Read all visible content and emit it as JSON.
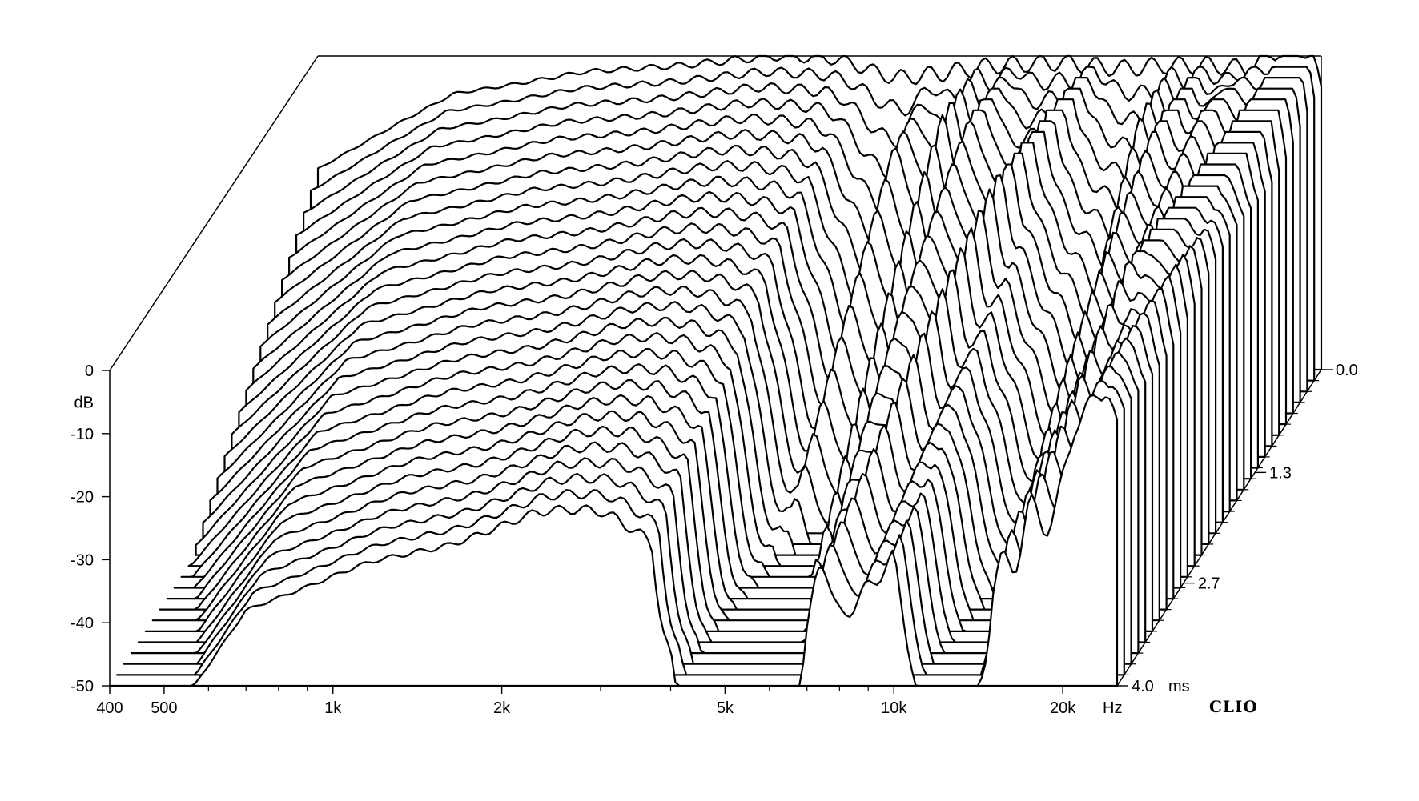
{
  "chart_data": {
    "type": "cumulative-spectral-decay-waterfall",
    "x_axis": {
      "scale": "log",
      "range": [
        400,
        25000
      ],
      "tick_labels": [
        {
          "value": 400,
          "label": "400"
        },
        {
          "value": 500,
          "label": "500"
        },
        {
          "value": 1000,
          "label": "1k"
        },
        {
          "value": 2000,
          "label": "2k"
        },
        {
          "value": 5000,
          "label": "5k"
        },
        {
          "value": 10000,
          "label": "10k"
        },
        {
          "value": 20000,
          "label": "20k"
        }
      ],
      "unit_label": "Hz"
    },
    "y_axis": {
      "range": [
        -50,
        0
      ],
      "tick_labels": [
        {
          "value": 0,
          "label": "0"
        },
        {
          "value": -10,
          "label": "-10"
        },
        {
          "value": -20,
          "label": "-20"
        },
        {
          "value": -30,
          "label": "-30"
        },
        {
          "value": -40,
          "label": "-40"
        },
        {
          "value": -50,
          "label": "-50"
        }
      ],
      "unit_label": "dB"
    },
    "z_axis": {
      "range": [
        0,
        4.0
      ],
      "tick_labels": [
        {
          "value": 0.0,
          "label": "0.0"
        },
        {
          "value": 1.3,
          "label": "1.3"
        },
        {
          "value": 2.7,
          "label": "2.7"
        },
        {
          "value": 4.0,
          "label": "4.0"
        }
      ],
      "unit_label": "ms"
    },
    "slice_count": 30,
    "slice_times_ms": [
      0.0,
      0.138,
      0.276,
      0.414,
      0.552,
      0.69,
      0.828,
      0.966,
      1.103,
      1.241,
      1.379,
      1.517,
      1.655,
      1.793,
      1.931,
      2.069,
      2.207,
      2.345,
      2.483,
      2.621,
      2.759,
      2.897,
      3.034,
      3.172,
      3.31,
      3.448,
      3.586,
      3.724,
      3.862,
      4.0
    ],
    "model": {
      "first_slice_db": [
        [
          400,
          -18
        ],
        [
          550,
          -11
        ],
        [
          700,
          -6
        ],
        [
          900,
          -4.5
        ],
        [
          1200,
          -2.5
        ],
        [
          1800,
          -1.5
        ],
        [
          2600,
          0
        ],
        [
          3400,
          -0.5
        ],
        [
          4300,
          -3.5
        ],
        [
          5000,
          -3
        ],
        [
          6500,
          -1.5
        ],
        [
          8500,
          -1
        ],
        [
          11000,
          -2
        ],
        [
          13000,
          -1.5
        ],
        [
          16000,
          -1.5
        ],
        [
          18500,
          -2
        ],
        [
          21000,
          1
        ],
        [
          24000,
          1
        ],
        [
          25000,
          -6
        ]
      ],
      "decay_db_per_ms": [
        [
          400,
          13
        ],
        [
          700,
          8
        ],
        [
          1100,
          7
        ],
        [
          1600,
          6.5
        ],
        [
          2300,
          5.5
        ],
        [
          3000,
          5.5
        ],
        [
          3700,
          6.5
        ],
        [
          4500,
          24
        ],
        [
          5500,
          22
        ],
        [
          7000,
          11
        ],
        [
          8500,
          9
        ],
        [
          10000,
          7
        ],
        [
          13000,
          22
        ],
        [
          15000,
          10
        ],
        [
          18000,
          8
        ],
        [
          21000,
          2.5
        ],
        [
          23000,
          1.2
        ],
        [
          25000,
          0.8
        ]
      ],
      "resonance_ridges": [
        {
          "f0_hz": 5200,
          "f1_hz": 4100,
          "amp_db": 14,
          "width_oct": 0.07
        },
        {
          "f0_hz": 6300,
          "f1_hz": 5000,
          "amp_db": 12,
          "width_oct": 0.07
        },
        {
          "f0_hz": 7300,
          "f1_hz": 5900,
          "amp_db": 12,
          "width_oct": 0.07
        },
        {
          "f0_hz": 10200,
          "f1_hz": 7400,
          "amp_db": 13,
          "width_oct": 0.07
        },
        {
          "f0_hz": 14000,
          "f1_hz": 12500,
          "amp_db": 12,
          "width_oct": 0.07
        },
        {
          "f0_hz": 16000,
          "f1_hz": 13800,
          "amp_db": 12,
          "width_oct": 0.07
        },
        {
          "f0_hz": 18500,
          "f1_hz": 15500,
          "amp_db": 10,
          "width_oct": 0.07
        },
        {
          "f0_hz": 23500,
          "f1_hz": 17500,
          "amp_db": 14,
          "width_oct": 0.08
        }
      ]
    }
  },
  "brand_label": "CLIO"
}
